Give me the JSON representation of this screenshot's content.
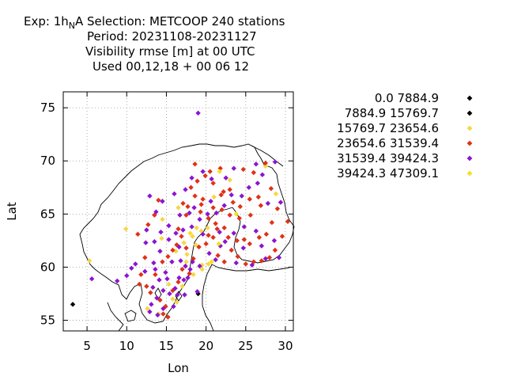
{
  "header": {
    "line1_prefix": "Exp: 1h",
    "line1_sub": "N",
    "line1_suffix": "A   Selection: METCOOP    240 stations",
    "line2": "Period: 20231108-20231127",
    "line3": "Visibility rmse [m] at  00 UTC",
    "line4": "Used  00,12,18  + 00 06 12"
  },
  "chart_data": {
    "type": "scatter",
    "xlabel": "Lon",
    "ylabel": "Lat",
    "xlim": [
      2,
      31
    ],
    "ylim": [
      54,
      76.5
    ],
    "xticks": [
      5,
      10,
      15,
      20,
      25,
      30
    ],
    "yticks": [
      55,
      60,
      65,
      70,
      75
    ],
    "grid": true,
    "legend_placement": "right",
    "series": [
      {
        "name": "0.0 7884.9",
        "color": "#000000",
        "points": [
          [
            19.0,
            57.5
          ]
        ]
      },
      {
        "name": "7884.9 15769.7",
        "color": "#000000",
        "points": [
          [
            3.2,
            56.5
          ]
        ]
      },
      {
        "name": "15769.7 23654.6",
        "color": "#f5d742",
        "points": [
          [
            5.3,
            60.6
          ],
          [
            9.9,
            63.6
          ],
          [
            14.5,
            64.5
          ],
          [
            16.2,
            61.5
          ],
          [
            17.2,
            62.3
          ],
          [
            17.6,
            61.2
          ],
          [
            18.3,
            62.9
          ],
          [
            18.8,
            63.7
          ],
          [
            19.4,
            63.4
          ],
          [
            20.2,
            63.7
          ],
          [
            21.0,
            66.6
          ],
          [
            23.0,
            68.2
          ],
          [
            27.5,
            69.5
          ],
          [
            28.8,
            66.9
          ],
          [
            15.3,
            58.4
          ],
          [
            15.8,
            57.0
          ],
          [
            16.3,
            56.7
          ],
          [
            17.0,
            58.2
          ],
          [
            18.4,
            59.3
          ],
          [
            19.5,
            59.8
          ],
          [
            19.5,
            60.2
          ],
          [
            20.3,
            60.3
          ],
          [
            17.5,
            60.5
          ],
          [
            14.4,
            62.7
          ],
          [
            12.6,
            56.1
          ],
          [
            14.0,
            55.6
          ],
          [
            18.7,
            62.1
          ],
          [
            16.5,
            65.6
          ]
        ]
      },
      {
        "name": "23654.6 31539.4",
        "color": "#e03216",
        "points": [
          [
            17.1,
            66.0
          ],
          [
            17.7,
            65.7
          ],
          [
            18.1,
            67.5
          ],
          [
            18.9,
            68.1
          ],
          [
            19.9,
            68.6
          ],
          [
            20.9,
            67.9
          ],
          [
            21.9,
            66.8
          ],
          [
            23.0,
            67.3
          ],
          [
            23.4,
            66.1
          ],
          [
            24.3,
            65.7
          ],
          [
            25.5,
            66.4
          ],
          [
            26.6,
            66.6
          ],
          [
            26.9,
            65.8
          ],
          [
            27.5,
            69.8
          ],
          [
            28.2,
            67.4
          ],
          [
            29.0,
            65.5
          ],
          [
            30.3,
            64.3
          ],
          [
            29.6,
            62.9
          ],
          [
            28.7,
            61.6
          ],
          [
            28.0,
            60.9
          ],
          [
            27.0,
            60.6
          ],
          [
            26.0,
            60.5
          ],
          [
            25.0,
            60.3
          ],
          [
            24.0,
            61.0
          ],
          [
            23.2,
            61.6
          ],
          [
            22.8,
            62.8
          ],
          [
            22.3,
            63.7
          ],
          [
            21.4,
            63.6
          ],
          [
            20.3,
            64.6
          ],
          [
            20.9,
            65.6
          ],
          [
            19.4,
            65.9
          ],
          [
            18.6,
            66.7
          ],
          [
            17.5,
            64.9
          ],
          [
            16.5,
            63.6
          ],
          [
            16.9,
            62.9
          ],
          [
            16.3,
            62.1
          ],
          [
            15.8,
            61.6
          ],
          [
            15.2,
            61.0
          ],
          [
            14.5,
            60.5
          ],
          [
            13.6,
            59.3
          ],
          [
            12.5,
            58.2
          ],
          [
            13.0,
            57.6
          ],
          [
            14.2,
            56.9
          ],
          [
            14.9,
            56.3
          ],
          [
            15.8,
            57.8
          ],
          [
            16.5,
            58.6
          ],
          [
            17.0,
            59.8
          ],
          [
            17.9,
            59.4
          ],
          [
            18.4,
            60.8
          ],
          [
            19.1,
            61.9
          ],
          [
            20.0,
            62.2
          ],
          [
            21.5,
            61.1
          ],
          [
            22.3,
            60.5
          ],
          [
            23.9,
            62.5
          ],
          [
            24.8,
            62.6
          ],
          [
            25.5,
            62.2
          ],
          [
            26.7,
            62.8
          ],
          [
            27.6,
            63.1
          ],
          [
            28.3,
            64.2
          ],
          [
            25.6,
            64.9
          ],
          [
            24.2,
            64.6
          ],
          [
            23.0,
            64.9
          ],
          [
            22.0,
            65.4
          ],
          [
            21.2,
            64.1
          ],
          [
            20.3,
            63.0
          ],
          [
            19.6,
            66.4
          ],
          [
            20.5,
            69.0
          ],
          [
            21.8,
            69.3
          ],
          [
            18.6,
            69.7
          ],
          [
            14.0,
            66.3
          ],
          [
            13.5,
            64.9
          ],
          [
            12.7,
            64.0
          ],
          [
            11.4,
            63.1
          ],
          [
            12.3,
            60.9
          ],
          [
            11.8,
            59.3
          ],
          [
            11.6,
            58.4
          ],
          [
            14.6,
            55.6
          ],
          [
            15.2,
            55.3
          ],
          [
            20.9,
            62.8
          ],
          [
            22.2,
            67.1
          ],
          [
            24.7,
            69.2
          ],
          [
            26.0,
            68.9
          ],
          [
            19.3,
            65.2
          ],
          [
            17.5,
            61.8
          ]
        ]
      },
      {
        "name": "31539.4 39424.3",
        "color": "#8b14d1",
        "points": [
          [
            19.0,
            74.5
          ],
          [
            5.6,
            58.9
          ],
          [
            8.8,
            58.7
          ],
          [
            10.0,
            59.2
          ],
          [
            10.6,
            59.9
          ],
          [
            11.1,
            60.3
          ],
          [
            12.4,
            62.3
          ],
          [
            12.5,
            63.5
          ],
          [
            13.5,
            62.4
          ],
          [
            14.3,
            63.3
          ],
          [
            15.3,
            63.9
          ],
          [
            16.7,
            64.9
          ],
          [
            17.9,
            65.1
          ],
          [
            18.5,
            65.6
          ],
          [
            19.2,
            64.5
          ],
          [
            20.2,
            65.0
          ],
          [
            21.3,
            65.1
          ],
          [
            22.3,
            65.8
          ],
          [
            23.2,
            66.8
          ],
          [
            24.5,
            66.7
          ],
          [
            25.4,
            67.5
          ],
          [
            26.5,
            67.9
          ],
          [
            27.1,
            68.7
          ],
          [
            27.8,
            66.0
          ],
          [
            29.4,
            66.1
          ],
          [
            28.6,
            62.5
          ],
          [
            27.5,
            60.8
          ],
          [
            25.8,
            60.2
          ],
          [
            24.7,
            61.8
          ],
          [
            23.5,
            63.2
          ],
          [
            22.4,
            62.4
          ],
          [
            21.2,
            60.7
          ],
          [
            20.4,
            61.3
          ],
          [
            19.2,
            60.1
          ],
          [
            18.0,
            59.8
          ],
          [
            17.2,
            58.8
          ],
          [
            16.4,
            57.4
          ],
          [
            15.4,
            57.5
          ],
          [
            14.6,
            57.8
          ],
          [
            13.8,
            57.1
          ],
          [
            13.1,
            56.5
          ],
          [
            12.9,
            55.8
          ],
          [
            13.9,
            55.5
          ],
          [
            14.6,
            56.1
          ],
          [
            15.9,
            56.3
          ],
          [
            16.6,
            59.0
          ],
          [
            17.4,
            60.1
          ],
          [
            18.3,
            60.5
          ],
          [
            17.7,
            59.0
          ],
          [
            16.8,
            60.6
          ],
          [
            15.7,
            60.5
          ],
          [
            14.9,
            59.5
          ],
          [
            14.1,
            58.8
          ],
          [
            13.3,
            58.1
          ],
          [
            12.3,
            59.6
          ],
          [
            13.4,
            60.4
          ],
          [
            14.2,
            61.5
          ],
          [
            15.3,
            62.6
          ],
          [
            16.2,
            63.2
          ],
          [
            17.1,
            63.5
          ],
          [
            18.2,
            63.8
          ],
          [
            12.9,
            66.7
          ],
          [
            13.7,
            65.2
          ],
          [
            14.5,
            66.2
          ],
          [
            16.0,
            66.9
          ],
          [
            17.4,
            67.3
          ],
          [
            18.2,
            68.4
          ],
          [
            19.6,
            69.0
          ],
          [
            20.7,
            68.3
          ],
          [
            23.5,
            69.3
          ],
          [
            26.3,
            69.7
          ],
          [
            28.7,
            69.9
          ],
          [
            24.8,
            63.8
          ],
          [
            26.3,
            63.4
          ],
          [
            27.0,
            62.0
          ],
          [
            29.2,
            60.9
          ],
          [
            21.8,
            62.0
          ],
          [
            18.9,
            57.7
          ],
          [
            17.3,
            57.4
          ],
          [
            16.1,
            58.0
          ],
          [
            15.1,
            58.9
          ],
          [
            13.6,
            59.8
          ],
          [
            16.6,
            61.9
          ],
          [
            19.6,
            63.1
          ],
          [
            20.6,
            66.2
          ],
          [
            22.5,
            68.4
          ],
          [
            21.7,
            63.3
          ],
          [
            23.8,
            60.4
          ]
        ]
      },
      {
        "name": "39424.3 47309.1",
        "color": "#f5e020",
        "points": [
          [
            21.7,
            69.0
          ],
          [
            23.8,
            65.0
          ],
          [
            20.7,
            60.5
          ],
          [
            21.6,
            62.2
          ],
          [
            18.0,
            63.2
          ]
        ]
      }
    ]
  }
}
